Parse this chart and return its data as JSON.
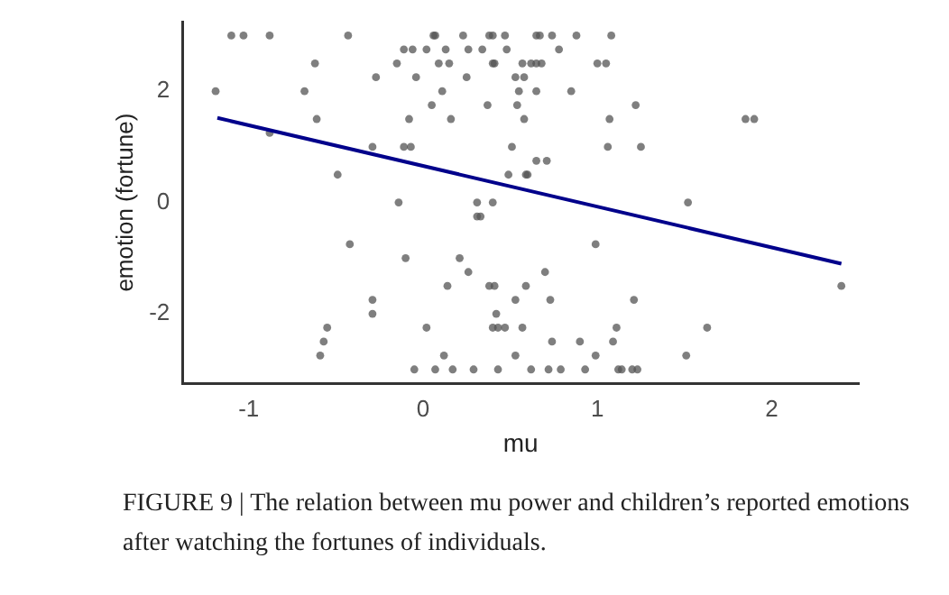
{
  "chart_data": {
    "type": "scatter",
    "xlabel": "mu",
    "ylabel": "emotion (fortune)",
    "xlim": [
      -1.38,
      2.5
    ],
    "ylim": [
      -3.25,
      3.25
    ],
    "xticks": [
      -1,
      0,
      1,
      2
    ],
    "yticks": [
      -2,
      0,
      2
    ],
    "grid": false,
    "legend": false,
    "marker": "circle",
    "annotations": [
      "FIGURE 9 | The relation between mu power and children’s reported emotions after watching the fortunes of individuals."
    ],
    "series": [
      {
        "type": "scatter",
        "color": "#555555",
        "x": [
          -1.1,
          -1.03,
          -0.88,
          -0.43,
          0.06,
          0.07,
          0.23,
          0.38,
          0.4,
          0.47,
          0.65,
          0.67,
          0.74,
          0.88,
          1.08,
          -0.11,
          -0.06,
          0.02,
          0.13,
          0.26,
          0.34,
          0.48,
          0.78,
          -0.62,
          -0.15,
          0.09,
          0.15,
          0.4,
          0.41,
          0.57,
          0.62,
          0.65,
          0.68,
          1.0,
          1.05,
          -0.27,
          -0.04,
          0.25,
          0.53,
          0.58,
          -1.19,
          -0.68,
          0.11,
          0.55,
          0.65,
          0.85,
          0.05,
          0.37,
          0.54,
          1.22,
          -0.61,
          -0.08,
          0.16,
          0.58,
          1.07,
          1.85,
          1.9,
          -0.88,
          -0.29,
          -0.11,
          -0.07,
          0.51,
          1.06,
          1.25,
          0.65,
          0.71,
          -0.49,
          0.49,
          0.59,
          0.6,
          -0.14,
          0.31,
          0.4,
          1.52,
          0.31,
          0.33,
          -0.42,
          0.99,
          -0.1,
          0.21,
          0.26,
          0.7,
          0.14,
          0.38,
          0.41,
          0.59,
          2.4,
          -0.29,
          0.53,
          0.73,
          1.21,
          -0.29,
          0.42,
          -0.55,
          0.02,
          0.4,
          0.43,
          0.47,
          0.57,
          1.11,
          1.63,
          -0.57,
          0.74,
          0.9,
          1.09,
          -0.59,
          0.12,
          0.53,
          0.99,
          1.51,
          -0.05,
          0.07,
          0.17,
          0.29,
          0.43,
          0.62,
          0.72,
          0.79,
          0.93,
          1.12,
          1.14,
          1.2,
          1.23
        ],
        "values": [
          3,
          3,
          3,
          3,
          3,
          3,
          3,
          3,
          3,
          3,
          3,
          3,
          3,
          3,
          3,
          2.75,
          2.75,
          2.75,
          2.75,
          2.75,
          2.75,
          2.75,
          2.75,
          2.5,
          2.5,
          2.5,
          2.5,
          2.5,
          2.5,
          2.5,
          2.5,
          2.5,
          2.5,
          2.5,
          2.5,
          2.25,
          2.25,
          2.25,
          2.25,
          2.25,
          2,
          2,
          2,
          2,
          2,
          2,
          1.75,
          1.75,
          1.75,
          1.75,
          1.5,
          1.5,
          1.5,
          1.5,
          1.5,
          1.5,
          1.5,
          1.25,
          1,
          1,
          1,
          1,
          1,
          1,
          0.75,
          0.75,
          0.5,
          0.5,
          0.5,
          0.5,
          0,
          0,
          0,
          0,
          -0.25,
          -0.25,
          -0.75,
          -0.75,
          -1,
          -1,
          -1.25,
          -1.25,
          -1.5,
          -1.5,
          -1.5,
          -1.5,
          -1.5,
          -1.75,
          -1.75,
          -1.75,
          -1.75,
          -2,
          -2,
          -2.25,
          -2.25,
          -2.25,
          -2.25,
          -2.25,
          -2.25,
          -2.25,
          -2.25,
          -2.5,
          -2.5,
          -2.5,
          -2.5,
          -2.75,
          -2.75,
          -2.75,
          -2.75,
          -2.75,
          -3,
          -3,
          -3,
          -3,
          -3,
          -3,
          -3,
          -3,
          -3,
          -3,
          -3,
          -3,
          -3
        ]
      },
      {
        "type": "line",
        "color": "#00008b",
        "marker": "none",
        "line_style": "solid",
        "x": [
          -1.18,
          2.4
        ],
        "values": [
          1.52,
          -1.1
        ]
      }
    ]
  }
}
